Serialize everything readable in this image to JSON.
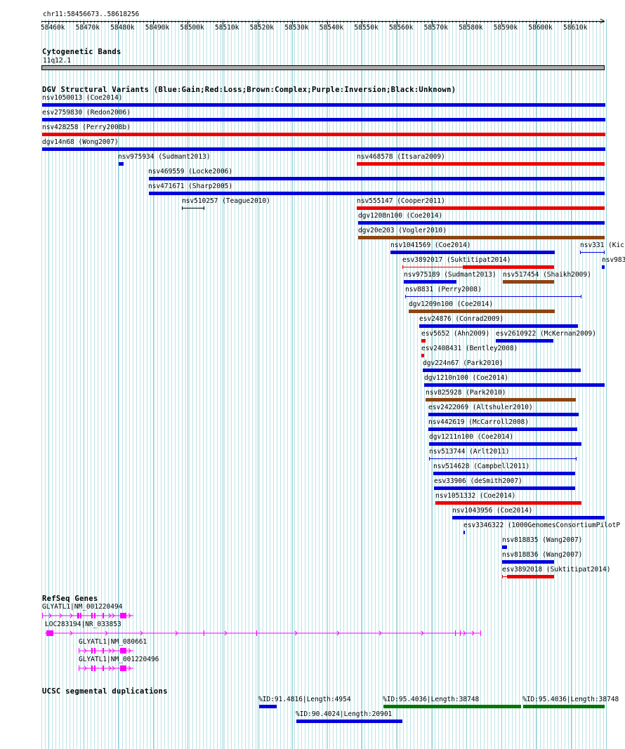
{
  "browser": {
    "position": "chr11:58456673..58618256",
    "ruler_ticks": [
      "58460k",
      "58470k",
      "58480k",
      "58490k",
      "58500k",
      "58510k",
      "58520k",
      "58530k",
      "58540k",
      "58550k",
      "58560k",
      "58570k",
      "58580k",
      "58590k",
      "58600k",
      "58610k"
    ]
  },
  "tracks": {
    "cyto": {
      "title": "Cytogenetic Bands",
      "band": "11q12.1"
    },
    "dgv": {
      "title": "DGV Structural Variants (Blue:Gain;Red:Loss;Brown:Complex;Purple:Inversion;Black:Unknown)",
      "colors": {
        "gain": "#0000dd",
        "loss": "#ee0000",
        "complex": "#8b4513",
        "unknown": "#000000"
      },
      "features": [
        {
          "label": "nsv1050013 (Coe2014)"
        },
        {
          "label": "esv2759830 (Redon2006)"
        },
        {
          "label": "nsv428258 (Perry2008b)"
        },
        {
          "label": "dgv14n68 (Wong2007)"
        },
        {
          "label": "nsv975934 (Sudmant2013)"
        },
        {
          "label": "nsv468578 (Itsara2009)"
        },
        {
          "label": "nsv469559 (Locke2006)"
        },
        {
          "label": "nsv471671 (Sharp2005)"
        },
        {
          "label": "nsv510257 (Teague2010)"
        },
        {
          "label": "nsv555147 (Cooper2011)"
        },
        {
          "label": "dgv1208n100 (Coe2014)"
        },
        {
          "label": "dgv20e203 (Vogler2010)"
        },
        {
          "label": "nsv1041569 (Coe2014)"
        },
        {
          "label": "nsv331 (Kic"
        },
        {
          "label": "esv3892017 (Suktitipat2014)"
        },
        {
          "label": "nsv983"
        },
        {
          "label": "nsv975189 (Sudmant2013)"
        },
        {
          "label": "nsv517454 (Shaikh2009)"
        },
        {
          "label": "nsv8831 (Perry2008)"
        },
        {
          "label": "dgv1209n100 (Coe2014)"
        },
        {
          "label": "esv24876 (Conrad2009)"
        },
        {
          "label": "esv5652 (Ahn2009)"
        },
        {
          "label": "esv2610922 (McKernan2009)"
        },
        {
          "label": "esv2408431 (Bentley2008)"
        },
        {
          "label": "dgv224n67 (Park2010)"
        },
        {
          "label": "dgv1210n100 (Coe2014)"
        },
        {
          "label": "nsv825928 (Park2010)"
        },
        {
          "label": "esv2422069 (Altshuler2010)"
        },
        {
          "label": "nsv442619 (McCarroll2008)"
        },
        {
          "label": "dgv1211n100 (Coe2014)"
        },
        {
          "label": "nsv513744 (Arlt2011)"
        },
        {
          "label": "nsv514628 (Campbell2011)"
        },
        {
          "label": "esv33906 (deSmith2007)"
        },
        {
          "label": "nsv1051332 (Coe2014)"
        },
        {
          "label": "nsv1043956 (Coe2014)"
        },
        {
          "label": "esv3346322 (1000GenomesConsortiumPilotP"
        },
        {
          "label": "nsv818835 (Wang2007)"
        },
        {
          "label": "nsv818836 (Wang2007)"
        },
        {
          "label": "esv3892018 (Suktitipat2014)"
        }
      ]
    },
    "refseq": {
      "title": "RefSeq Genes",
      "color": "#ff00ff",
      "genes": [
        {
          "label": "GLYATL1|NM_001220494"
        },
        {
          "label": "LOC283194|NR_033853"
        },
        {
          "label": "GLYATL1|NM_080661"
        },
        {
          "label": "GLYATL1|NM_001220496"
        }
      ]
    },
    "segdup": {
      "title": "UCSC segmental duplications",
      "colors": {
        "low": "#0000dd",
        "high": "#007700"
      },
      "features": [
        {
          "label": "%ID:91.4816|Length:4954"
        },
        {
          "label": "%ID:95.4036|Length:38748"
        },
        {
          "label": "%ID:95.4036|Length:38748"
        },
        {
          "label": "%ID:90.4024|Length:20901"
        }
      ]
    }
  }
}
